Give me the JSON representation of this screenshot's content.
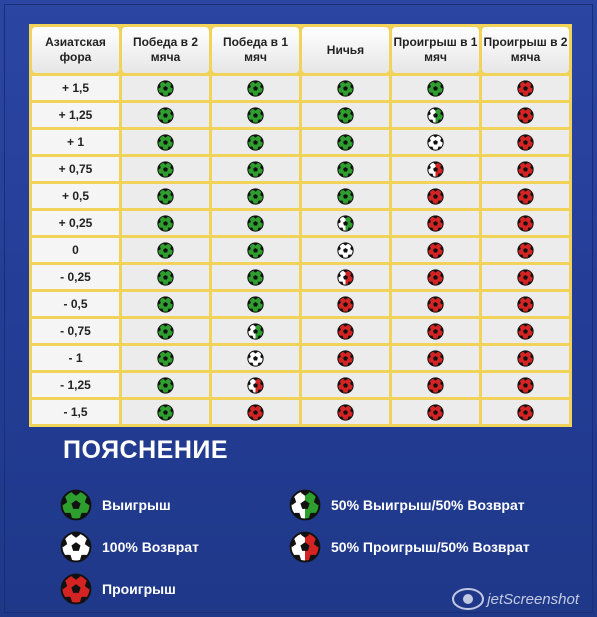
{
  "table": {
    "headers": [
      "Азиатская фора",
      "Победа в 2 мяча",
      "Победа в 1 мяч",
      "Ничья",
      "Проигрыш в 1 мяч",
      "Проигрыш в 2 мяча"
    ],
    "rows": [
      {
        "handicap": "+ 1,5",
        "results": [
          "win",
          "win",
          "win",
          "win",
          "loss"
        ]
      },
      {
        "handicap": "+ 1,25",
        "results": [
          "win",
          "win",
          "win",
          "halfwin",
          "loss"
        ]
      },
      {
        "handicap": "+ 1",
        "results": [
          "win",
          "win",
          "win",
          "refund",
          "loss"
        ]
      },
      {
        "handicap": "+ 0,75",
        "results": [
          "win",
          "win",
          "win",
          "halfloss",
          "loss"
        ]
      },
      {
        "handicap": "+ 0,5",
        "results": [
          "win",
          "win",
          "win",
          "loss",
          "loss"
        ]
      },
      {
        "handicap": "+ 0,25",
        "results": [
          "win",
          "win",
          "halfwin",
          "loss",
          "loss"
        ]
      },
      {
        "handicap": "0",
        "results": [
          "win",
          "win",
          "refund",
          "loss",
          "loss"
        ]
      },
      {
        "handicap": "- 0,25",
        "results": [
          "win",
          "win",
          "halfloss",
          "loss",
          "loss"
        ]
      },
      {
        "handicap": "- 0,5",
        "results": [
          "win",
          "win",
          "loss",
          "loss",
          "loss"
        ]
      },
      {
        "handicap": "- 0,75",
        "results": [
          "win",
          "halfwin",
          "loss",
          "loss",
          "loss"
        ]
      },
      {
        "handicap": "- 1",
        "results": [
          "win",
          "refund",
          "loss",
          "loss",
          "loss"
        ]
      },
      {
        "handicap": "- 1,25",
        "results": [
          "win",
          "halfloss",
          "loss",
          "loss",
          "loss"
        ]
      },
      {
        "handicap": "- 1,5",
        "results": [
          "win",
          "loss",
          "loss",
          "loss",
          "loss"
        ]
      }
    ]
  },
  "legend": {
    "title": "ПОЯСНЕНИЕ",
    "win": "Выигрыш",
    "refund": "100% Возврат",
    "loss": "Проигрыш",
    "halfwin": "50% Выигрыш/50% Возврат",
    "halfloss": "50% Проигрыш/50% Возврат"
  },
  "colors": {
    "win": "#2e9e2e",
    "loss": "#d42323",
    "refund": "#ffffff",
    "table_border": "#f2d35a",
    "background": "#2b45a3"
  },
  "watermark": "jetScreenshot"
}
